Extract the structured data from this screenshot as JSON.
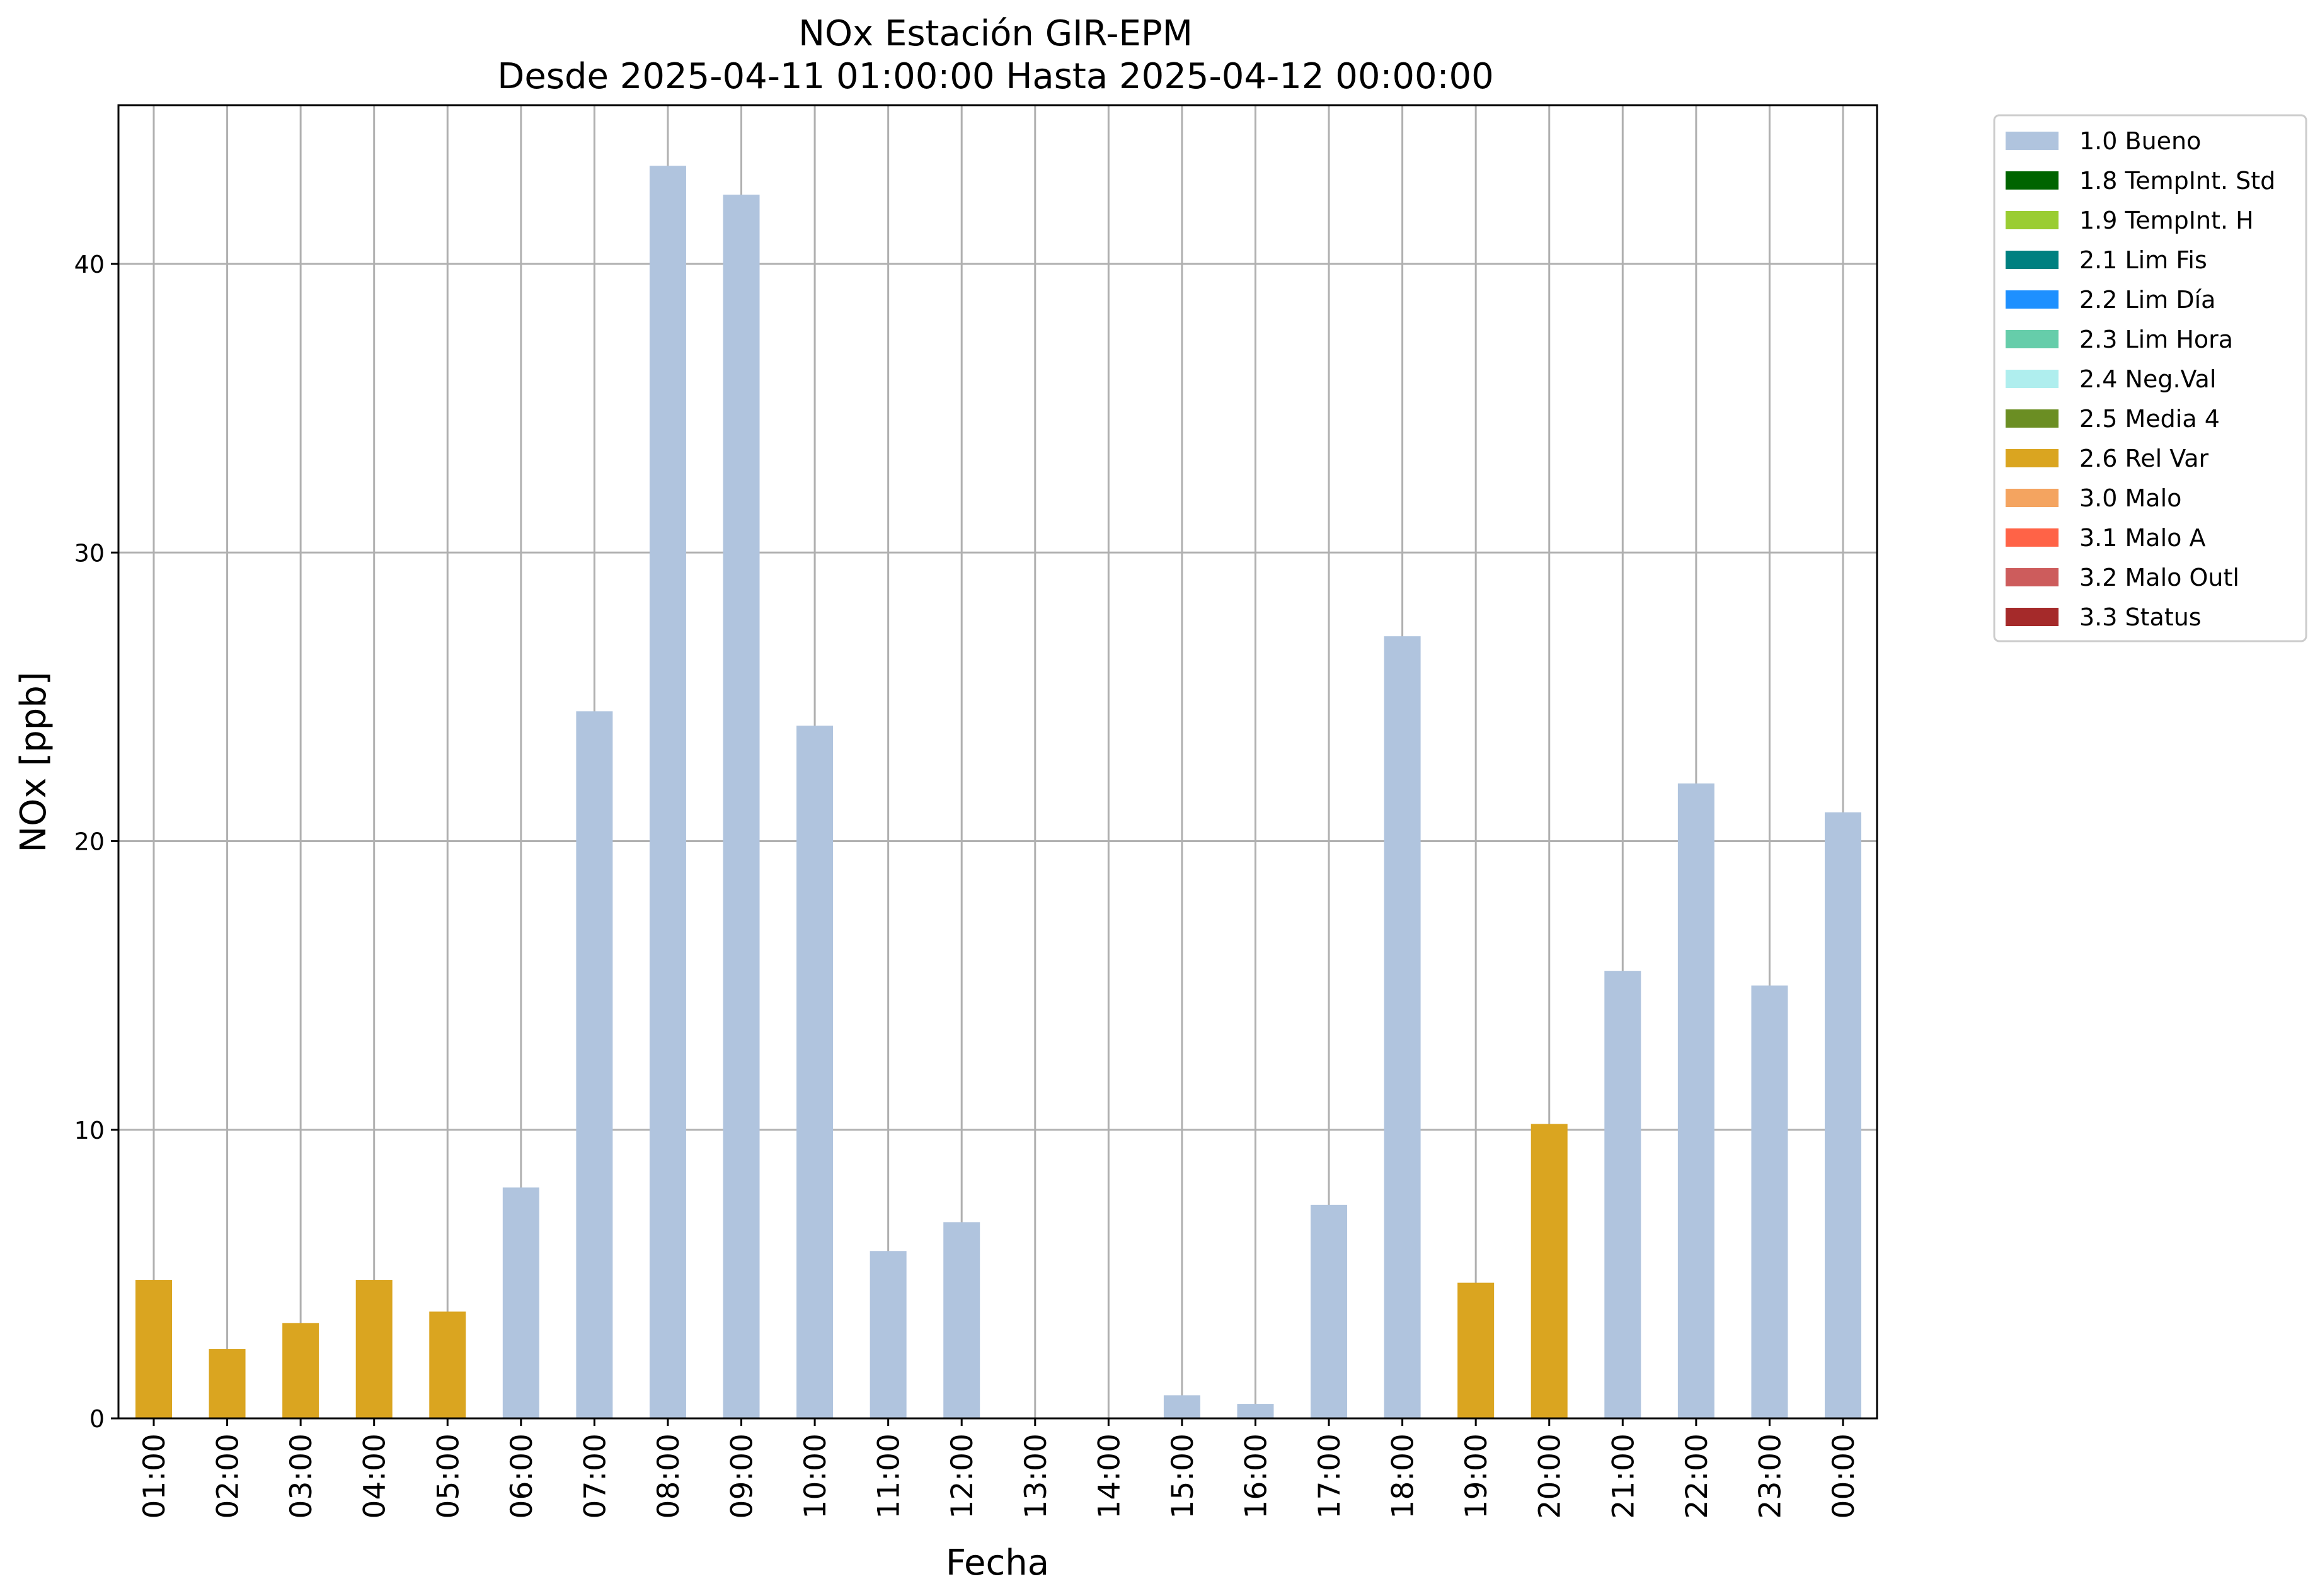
{
  "chart_data": {
    "type": "bar",
    "title": "NOx Estación GIR-EPM",
    "subtitle": "Desde 2025-04-11 01:00:00 Hasta 2025-04-12 00:00:00",
    "xlabel": "Fecha",
    "ylabel": "NOx [ppb]",
    "ylim": [
      0,
      45.5
    ],
    "yticks": [
      0,
      10,
      20,
      30,
      40
    ],
    "grid": true,
    "legend_position": "outside-right",
    "categories": [
      "01:00",
      "02:00",
      "03:00",
      "04:00",
      "05:00",
      "06:00",
      "07:00",
      "08:00",
      "09:00",
      "10:00",
      "11:00",
      "12:00",
      "13:00",
      "14:00",
      "15:00",
      "16:00",
      "17:00",
      "18:00",
      "19:00",
      "20:00",
      "21:00",
      "22:00",
      "23:00",
      "00:00"
    ],
    "values": [
      4.8,
      2.4,
      3.3,
      4.8,
      3.7,
      8.0,
      24.5,
      43.4,
      42.4,
      24.0,
      5.8,
      6.8,
      null,
      null,
      0.8,
      0.5,
      7.4,
      27.1,
      4.7,
      10.2,
      15.5,
      22.0,
      15.0,
      21.0
    ],
    "flags": [
      "2.6 Rel Var",
      "2.6 Rel Var",
      "2.6 Rel Var",
      "2.6 Rel Var",
      "2.6 Rel Var",
      "1.0 Bueno",
      "1.0 Bueno",
      "1.0 Bueno",
      "1.0 Bueno",
      "1.0 Bueno",
      "1.0 Bueno",
      "1.0 Bueno",
      null,
      null,
      "1.0 Bueno",
      "1.0 Bueno",
      "1.0 Bueno",
      "1.0 Bueno",
      "2.6 Rel Var",
      "2.6 Rel Var",
      "1.0 Bueno",
      "1.0 Bueno",
      "1.0 Bueno",
      "1.0 Bueno"
    ],
    "legend": [
      {
        "label": "1.0 Bueno",
        "color": "#b0c4de"
      },
      {
        "label": "1.8 TempInt. Std",
        "color": "#006400"
      },
      {
        "label": "1.9 TempInt. H",
        "color": "#9acd32"
      },
      {
        "label": "2.1 Lim Fis",
        "color": "#008080"
      },
      {
        "label": "2.2 Lim Día",
        "color": "#1e90ff"
      },
      {
        "label": "2.3 Lim Hora",
        "color": "#66cdaa"
      },
      {
        "label": "2.4 Neg.Val",
        "color": "#afeeee"
      },
      {
        "label": "2.5 Media 4",
        "color": "#6b8e23"
      },
      {
        "label": "2.6 Rel Var",
        "color": "#daa520"
      },
      {
        "label": "3.0 Malo",
        "color": "#f4a460"
      },
      {
        "label": "3.1 Malo A",
        "color": "#ff6347"
      },
      {
        "label": "3.2 Malo Outl",
        "color": "#cd5c5c"
      },
      {
        "label": "3.3 Status",
        "color": "#a52a2a"
      }
    ]
  }
}
